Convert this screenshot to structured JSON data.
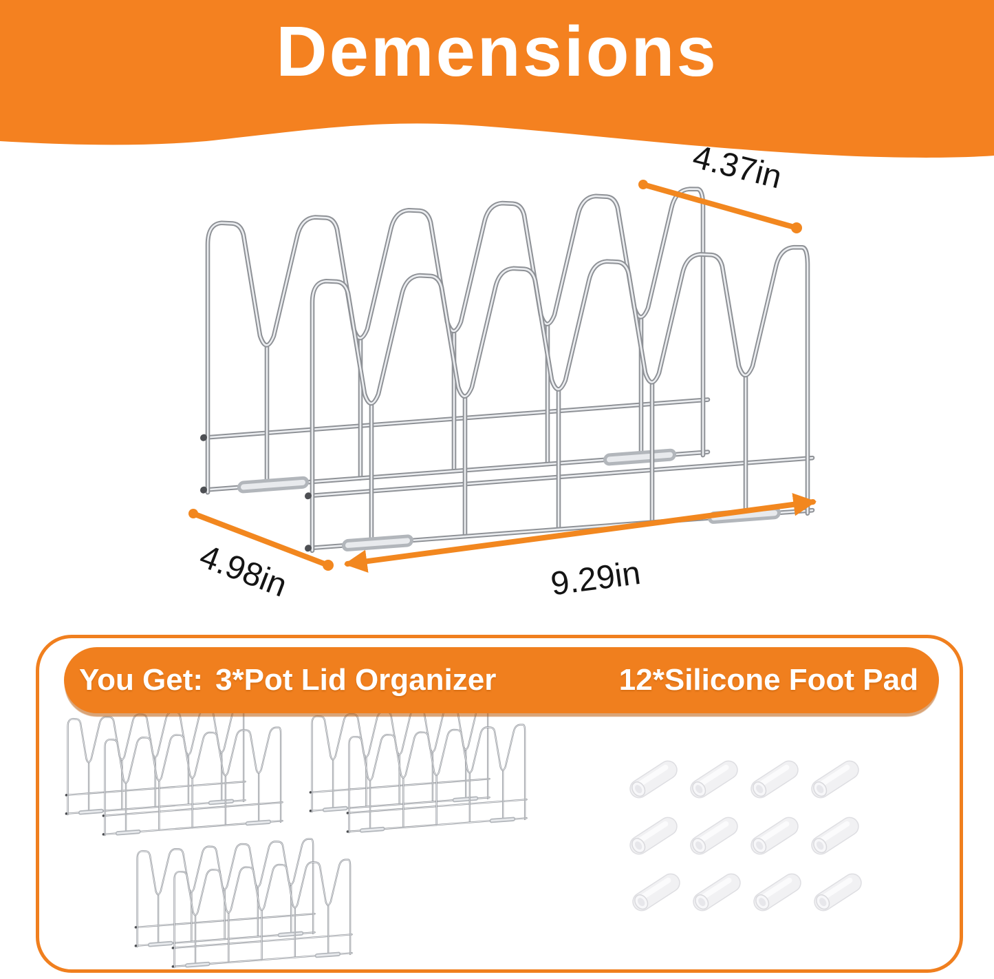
{
  "header": {
    "title": "Demensions"
  },
  "colors": {
    "orange": "#F07F1E",
    "header_orange": "#F48120",
    "arrow_orange": "#F2871F",
    "wire_gray": "#8e9196",
    "label_black": "#141414"
  },
  "diagram": {
    "product": "pot-lid-organizer-rack",
    "dimensions": {
      "top_depth": "4.37in",
      "left_depth": "4.98in",
      "bottom_width": "9.29in"
    }
  },
  "package": {
    "you_get": "You Get:",
    "organizers_label": "3*Pot Lid Organizer",
    "foot_pads_label": "12*Silicone Foot Pad",
    "organizer_count": 3,
    "foot_pad_count": 12
  }
}
